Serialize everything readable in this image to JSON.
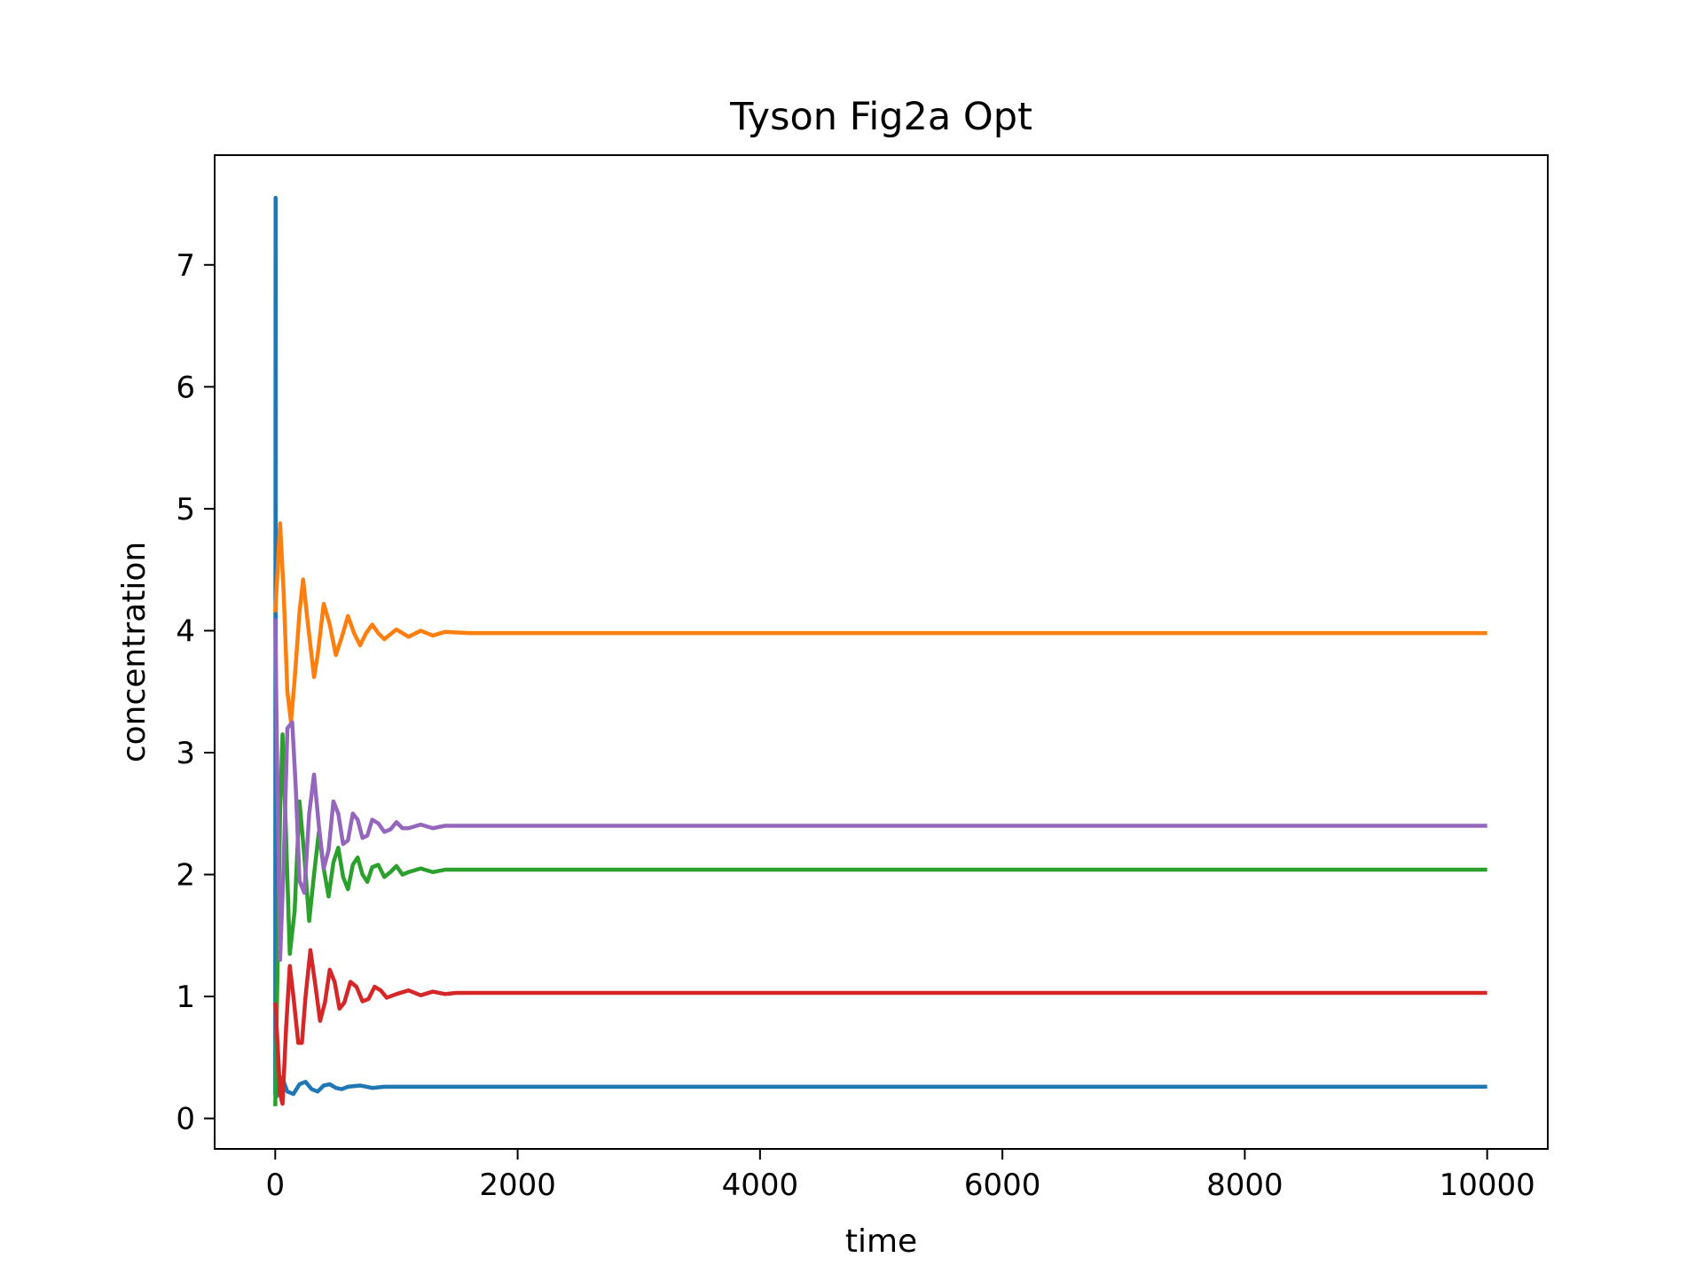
{
  "chart_data": {
    "type": "line",
    "title": "Tyson Fig2a Opt",
    "xlabel": "time",
    "ylabel": "concentration",
    "xlim": [
      -500,
      10500
    ],
    "ylim": [
      -0.25,
      7.9
    ],
    "xticks": [
      0,
      2000,
      4000,
      6000,
      8000,
      10000
    ],
    "xtick_labels": [
      "0",
      "2000",
      "4000",
      "6000",
      "8000",
      "10000"
    ],
    "yticks": [
      0,
      1,
      2,
      3,
      4,
      5,
      6,
      7
    ],
    "ytick_labels": [
      "0",
      "1",
      "2",
      "3",
      "4",
      "5",
      "6",
      "7"
    ],
    "grid": false,
    "legend": "none",
    "series": [
      {
        "color": "#1f77b4",
        "x": [
          0,
          3,
          5,
          10,
          20,
          40,
          70,
          100,
          150,
          200,
          250,
          300,
          350,
          400,
          450,
          500,
          550,
          600,
          700,
          800,
          900,
          1000,
          1200,
          1500,
          2000,
          3000,
          5000,
          7500,
          10000
        ],
        "y": [
          0.2,
          7.55,
          0.35,
          0.18,
          0.25,
          0.34,
          0.3,
          0.22,
          0.2,
          0.28,
          0.3,
          0.24,
          0.22,
          0.27,
          0.28,
          0.25,
          0.24,
          0.26,
          0.27,
          0.25,
          0.26,
          0.26,
          0.26,
          0.26,
          0.26,
          0.26,
          0.26,
          0.26,
          0.26
        ]
      },
      {
        "color": "#ff7f0e",
        "x": [
          0,
          20,
          40,
          70,
          100,
          130,
          160,
          200,
          230,
          270,
          320,
          350,
          400,
          450,
          500,
          550,
          600,
          650,
          700,
          750,
          800,
          850,
          900,
          950,
          1000,
          1100,
          1200,
          1300,
          1400,
          1600,
          2000,
          3000,
          5000,
          7500,
          10000
        ],
        "y": [
          4.15,
          4.5,
          4.88,
          4.3,
          3.5,
          3.25,
          3.6,
          4.15,
          4.42,
          4.05,
          3.62,
          3.8,
          4.22,
          4.05,
          3.8,
          3.95,
          4.12,
          3.98,
          3.88,
          3.98,
          4.05,
          3.98,
          3.93,
          3.97,
          4.01,
          3.95,
          4.0,
          3.96,
          3.99,
          3.98,
          3.98,
          3.98,
          3.98,
          3.98,
          3.98
        ]
      },
      {
        "color": "#2ca02c",
        "x": [
          0,
          15,
          40,
          60,
          80,
          120,
          160,
          200,
          240,
          280,
          320,
          360,
          400,
          440,
          480,
          520,
          560,
          600,
          640,
          680,
          720,
          760,
          800,
          850,
          900,
          950,
          1000,
          1050,
          1100,
          1200,
          1300,
          1400,
          1600,
          2000,
          3000,
          5000,
          7500,
          10000
        ],
        "y": [
          0.1,
          1.0,
          2.5,
          3.15,
          2.6,
          1.35,
          1.7,
          2.6,
          2.15,
          1.62,
          2.0,
          2.35,
          2.05,
          1.82,
          2.1,
          2.22,
          1.98,
          1.88,
          2.08,
          2.14,
          2.0,
          1.94,
          2.06,
          2.08,
          1.98,
          2.02,
          2.07,
          2.0,
          2.02,
          2.05,
          2.02,
          2.04,
          2.04,
          2.04,
          2.04,
          2.04,
          2.04,
          2.04
        ]
      },
      {
        "color": "#d62728",
        "x": [
          0,
          20,
          40,
          60,
          90,
          120,
          150,
          190,
          220,
          250,
          290,
          330,
          370,
          410,
          450,
          490,
          530,
          570,
          620,
          670,
          720,
          770,
          820,
          870,
          920,
          1000,
          1100,
          1200,
          1300,
          1400,
          1500,
          1600,
          2000,
          3000,
          5000,
          7500,
          10000
        ],
        "y": [
          0.95,
          0.6,
          0.2,
          0.12,
          0.75,
          1.25,
          1.0,
          0.62,
          0.62,
          1.0,
          1.38,
          1.1,
          0.8,
          0.95,
          1.22,
          1.12,
          0.9,
          0.95,
          1.12,
          1.08,
          0.96,
          0.98,
          1.08,
          1.05,
          0.99,
          1.02,
          1.05,
          1.01,
          1.04,
          1.02,
          1.03,
          1.03,
          1.03,
          1.03,
          1.03,
          1.03,
          1.03
        ]
      },
      {
        "color": "#9467bd",
        "x": [
          0,
          20,
          40,
          70,
          100,
          140,
          170,
          200,
          240,
          280,
          320,
          360,
          400,
          440,
          480,
          520,
          560,
          600,
          640,
          680,
          720,
          760,
          800,
          850,
          900,
          950,
          1000,
          1050,
          1100,
          1200,
          1300,
          1400,
          1600,
          2000,
          3000,
          5000,
          7500,
          10000
        ],
        "y": [
          4.1,
          2.6,
          1.3,
          2.1,
          3.2,
          3.25,
          2.7,
          1.95,
          1.85,
          2.5,
          2.82,
          2.4,
          2.05,
          2.2,
          2.6,
          2.5,
          2.25,
          2.28,
          2.5,
          2.45,
          2.3,
          2.32,
          2.45,
          2.42,
          2.35,
          2.37,
          2.43,
          2.38,
          2.38,
          2.41,
          2.38,
          2.4,
          2.4,
          2.4,
          2.4,
          2.4,
          2.4,
          2.4
        ]
      }
    ]
  }
}
